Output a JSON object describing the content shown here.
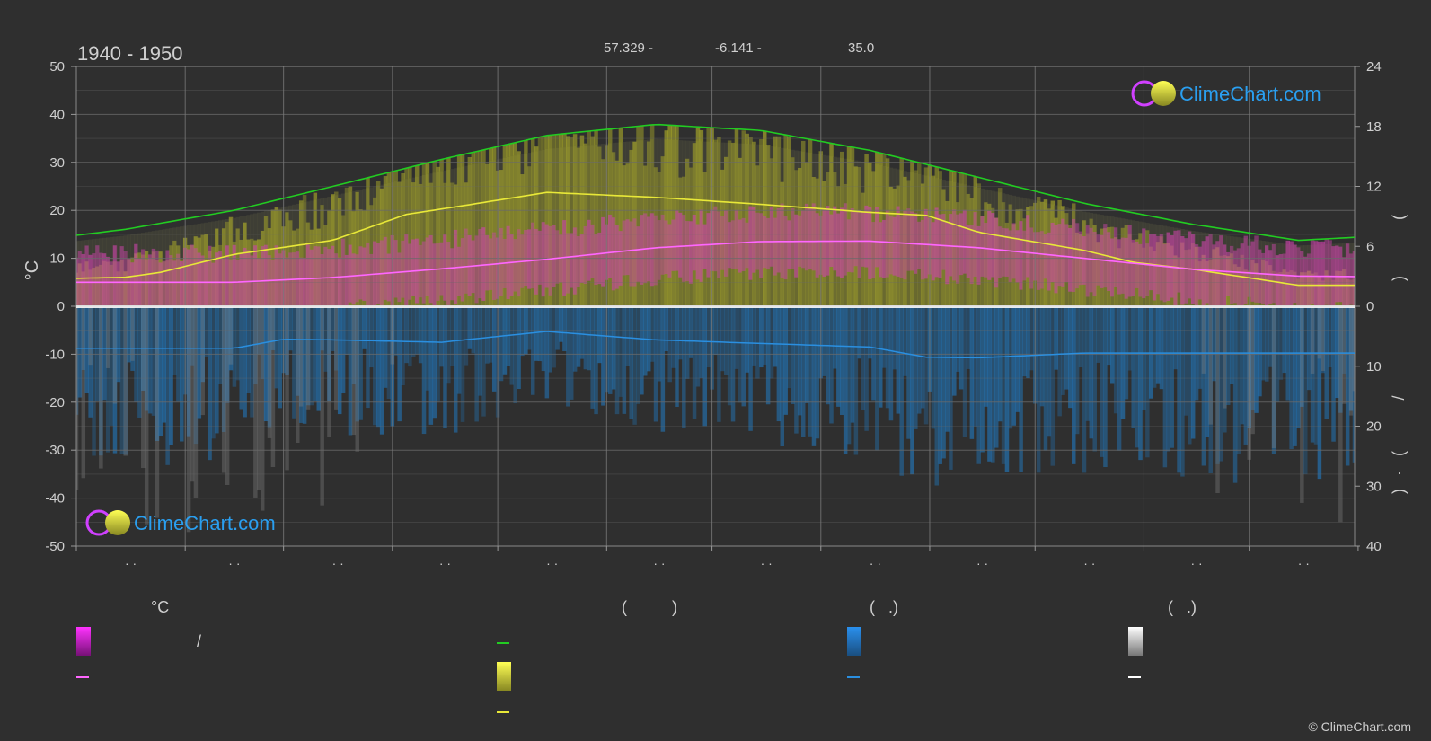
{
  "header": {
    "period": "1940 - 1950",
    "lat": "57.329 -",
    "lon": "-6.141 -",
    "elev": "35.0"
  },
  "logo": {
    "text": "ClimeChart.com"
  },
  "copyright": "© ClimeChart.com",
  "colors": {
    "background": "#2f2f2f",
    "daylight": "#22cc22",
    "sunshine_line": "#e8e838",
    "sunshine_fill": "#b8b828",
    "temp_fill": "#cc44aa",
    "temp_line": "#ff66ff",
    "rain_fill": "#2277bb",
    "rain_line": "#2a8fe0",
    "snow_fill": "#888888",
    "logo_text": "#2a9ff0"
  },
  "chart_data": {
    "type": "line",
    "x_unit": "day of year",
    "x_range": [
      1,
      365
    ],
    "month_tick_labels": [
      "· ·",
      "· ·",
      "· ·",
      "· ·",
      "· ·",
      "· ·",
      "· ·",
      "· ·",
      "· ·",
      "· ·",
      "· ·",
      "· ·"
    ],
    "y_left": {
      "label": "°C",
      "range": [
        -50,
        50
      ],
      "ticks": [
        50,
        40,
        30,
        20,
        10,
        0,
        -10,
        -20,
        -30,
        -40,
        -50
      ]
    },
    "y_right_top": {
      "range": [
        0,
        24
      ],
      "ticks": [
        24,
        18,
        12,
        6,
        0
      ],
      "label_glyphs": [
        "(",
        ")"
      ]
    },
    "y_right_bottom": {
      "range": [
        0,
        40
      ],
      "ticks": [
        0,
        10,
        20,
        30,
        40
      ],
      "label_glyphs": [
        "/",
        "(",
        "·",
        ")"
      ]
    },
    "grid": true,
    "series": [
      {
        "key": "daylight",
        "axis": "right_top",
        "x": [
          1,
          15,
          46,
          74,
          105,
          135,
          166,
          196,
          227,
          258,
          288,
          319,
          349,
          365
        ],
        "values": [
          7.1,
          7.7,
          9.6,
          12.0,
          14.7,
          17.1,
          18.2,
          17.6,
          15.6,
          12.9,
          10.3,
          8.2,
          6.6,
          6.9
        ]
      },
      {
        "key": "sunshine",
        "axis": "right_top",
        "x": [
          1,
          15,
          25,
          46,
          74,
          95,
          110,
          135,
          166,
          196,
          227,
          243,
          258,
          288,
          302,
          319,
          349,
          365
        ],
        "values": [
          2.8,
          2.9,
          3.4,
          5.2,
          6.6,
          9.2,
          10.0,
          11.4,
          10.9,
          10.2,
          9.4,
          9.1,
          7.4,
          5.6,
          4.4,
          3.7,
          2.1,
          2.1
        ]
      },
      {
        "key": "temperature_mean",
        "axis": "left",
        "x": [
          1,
          15,
          46,
          74,
          105,
          135,
          166,
          196,
          227,
          258,
          288,
          319,
          349,
          365
        ],
        "values": [
          5.0,
          5.0,
          5.0,
          6.0,
          7.8,
          9.8,
          12.2,
          13.5,
          13.6,
          12.2,
          10.0,
          7.7,
          6.3,
          6.2
        ]
      },
      {
        "key": "precipitation_mean",
        "axis": "right_bottom",
        "x": [
          1,
          15,
          46,
          60,
          74,
          105,
          135,
          166,
          196,
          227,
          243,
          258,
          288,
          319,
          349,
          365
        ],
        "values": [
          7.0,
          7.0,
          7.0,
          5.5,
          5.6,
          6.0,
          4.2,
          5.6,
          6.2,
          6.8,
          8.5,
          8.6,
          7.8,
          7.8,
          7.8,
          7.8
        ]
      },
      {
        "key": "snow_mean",
        "axis": "right_bottom",
        "x": [
          1,
          365
        ],
        "values": [
          0.2,
          0.2
        ]
      }
    ]
  },
  "legend": {
    "col1": {
      "head": "°C",
      "row1": "/"
    },
    "col2": {
      "head": "(          )"
    },
    "col3": {
      "head": "(   .)"
    },
    "col4": {
      "head": "(   .)"
    }
  }
}
